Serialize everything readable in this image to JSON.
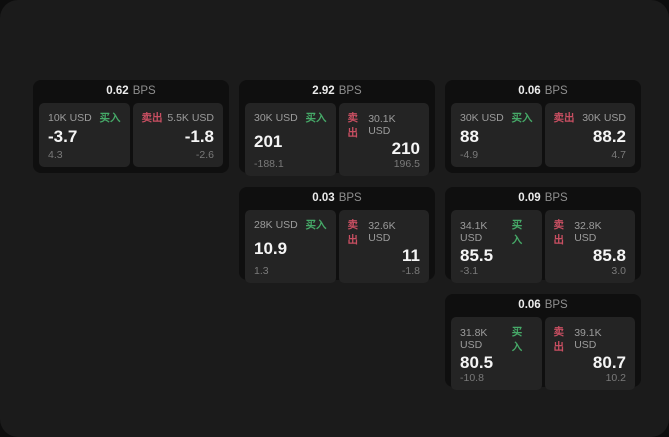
{
  "colors": {
    "bg_outer": "#0d0d0d",
    "bg_window": "#1b1b1b",
    "card_bg": "#0f0f0f",
    "panel_bg": "#242424",
    "buy": "#46a968",
    "sell": "#c94f62",
    "label": "#9c9c9c",
    "value": "#f5f5f5",
    "sub": "#7a7a7a",
    "unit": "#8f8f8f"
  },
  "labels": {
    "buy": "买入",
    "sell": "卖出",
    "bps_unit": "BPS"
  },
  "cards": [
    {
      "col": 1,
      "row": 1,
      "bps": "0.62",
      "buy": {
        "amount": "10K USD",
        "value": "-3.7",
        "sub": "4.3"
      },
      "sell": {
        "amount": "5.5K USD",
        "value": "-1.8",
        "sub": "-2.6"
      }
    },
    {
      "col": 2,
      "row": 1,
      "bps": "2.92",
      "buy": {
        "amount": "30K USD",
        "value": "201",
        "sub": "-188.1"
      },
      "sell": {
        "amount": "30.1K USD",
        "value": "210",
        "sub": "196.5"
      }
    },
    {
      "col": 3,
      "row": 1,
      "bps": "0.06",
      "buy": {
        "amount": "30K USD",
        "value": "88",
        "sub": "-4.9"
      },
      "sell": {
        "amount": "30K USD",
        "value": "88.2",
        "sub": "4.7"
      }
    },
    {
      "col": 2,
      "row": 2,
      "bps": "0.03",
      "buy": {
        "amount": "28K USD",
        "value": "10.9",
        "sub": "1.3"
      },
      "sell": {
        "amount": "32.6K USD",
        "value": "11",
        "sub": "-1.8"
      }
    },
    {
      "col": 3,
      "row": 2,
      "bps": "0.09",
      "buy": {
        "amount": "34.1K USD",
        "value": "85.5",
        "sub": "-3.1"
      },
      "sell": {
        "amount": "32.8K USD",
        "value": "85.8",
        "sub": "3.0"
      }
    },
    {
      "col": 3,
      "row": 3,
      "bps": "0.06",
      "buy": {
        "amount": "31.8K USD",
        "value": "80.5",
        "sub": "-10.8"
      },
      "sell": {
        "amount": "39.1K USD",
        "value": "80.7",
        "sub": "10.2"
      }
    }
  ]
}
